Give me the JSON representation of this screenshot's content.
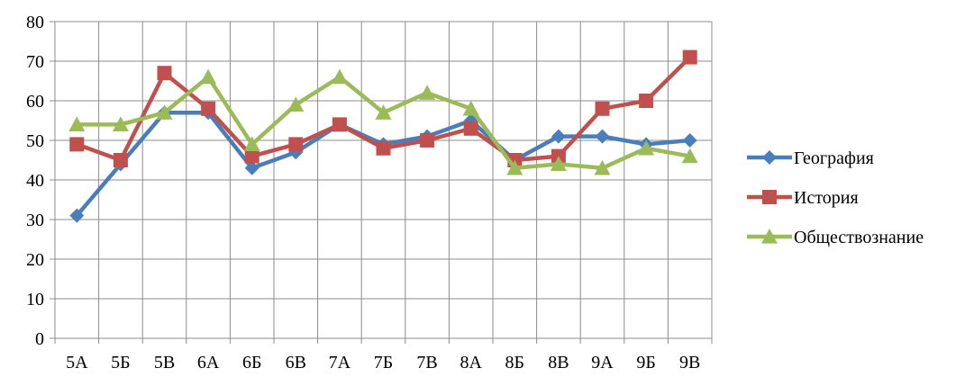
{
  "chart_data": {
    "type": "line",
    "title": "",
    "xlabel": "",
    "ylabel": "",
    "categories": [
      "5А",
      "5Б",
      "5В",
      "6А",
      "6Б",
      "6В",
      "7А",
      "7Б",
      "7В",
      "8А",
      "8Б",
      "8В",
      "9А",
      "9Б",
      "9В"
    ],
    "ylim": [
      0,
      80
    ],
    "yticks": [
      0,
      10,
      20,
      30,
      40,
      50,
      60,
      70,
      80
    ],
    "grid": true,
    "legend_position": "right",
    "series": [
      {
        "name": "География",
        "color": "#4a7ebb",
        "marker": "diamond",
        "values": [
          31,
          44,
          57,
          57,
          43,
          47,
          54,
          49,
          51,
          55,
          45,
          51,
          51,
          49,
          50
        ]
      },
      {
        "name": "История",
        "color": "#c0504d",
        "marker": "square",
        "values": [
          49,
          45,
          67,
          58,
          46,
          49,
          54,
          48,
          50,
          53,
          45,
          46,
          58,
          60,
          71
        ]
      },
      {
        "name": "Обществознание",
        "color": "#9bbb59",
        "marker": "triangle",
        "values": [
          54,
          54,
          57,
          66,
          49,
          59,
          66,
          57,
          62,
          58,
          43,
          44,
          43,
          48,
          46
        ]
      }
    ]
  }
}
